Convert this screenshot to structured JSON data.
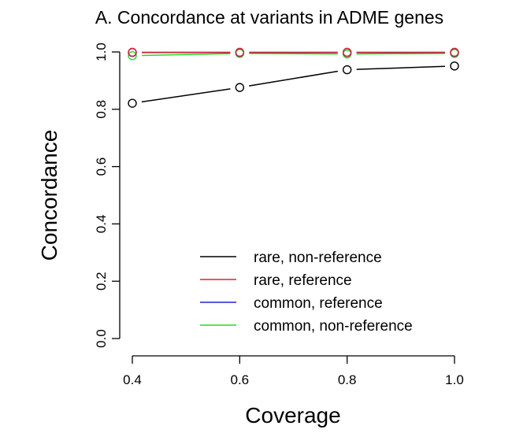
{
  "chart_data": {
    "type": "line",
    "title": "A. Concordance at variants in ADME genes",
    "xlabel": "Coverage",
    "ylabel": "Concordance",
    "x": [
      0.4,
      0.6,
      0.8,
      1.0
    ],
    "xticks": [
      "0.4",
      "0.6",
      "0.8",
      "1.0"
    ],
    "yticks": [
      "0.0",
      "0.2",
      "0.4",
      "0.6",
      "0.8",
      "1.0"
    ],
    "xlim": [
      0.4,
      1.0
    ],
    "ylim": [
      0.0,
      1.0
    ],
    "grid": false,
    "legend_position": "bottom-right",
    "series": [
      {
        "name": "common, non-reference",
        "color": "#22dd22",
        "values": [
          0.987,
          0.995,
          0.993,
          0.995
        ]
      },
      {
        "name": "common, reference",
        "color": "#2222cc",
        "values": [
          0.998,
          0.998,
          0.998,
          0.998
        ]
      },
      {
        "name": "rare, reference",
        "color": "#dd2233",
        "values": [
          0.999,
          0.999,
          0.999,
          0.999
        ]
      },
      {
        "name": "rare, non-reference",
        "color": "#000000",
        "values": [
          0.821,
          0.876,
          0.938,
          0.951
        ]
      }
    ],
    "legend_order": [
      "rare, non-reference",
      "rare, reference",
      "common, reference",
      "common, non-reference"
    ]
  }
}
